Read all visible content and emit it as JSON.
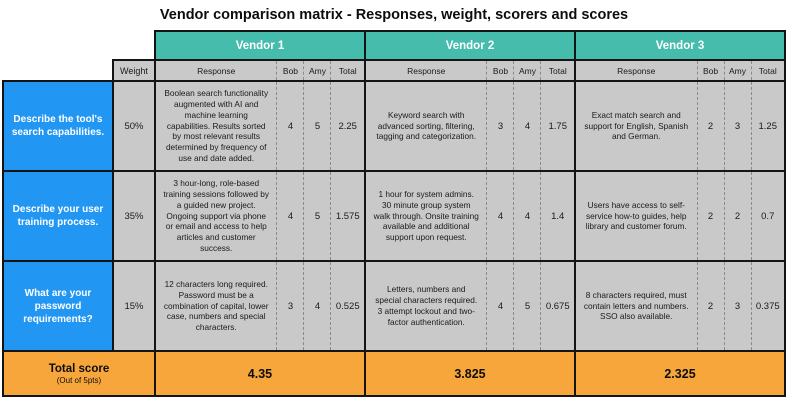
{
  "title": "Vendor comparison matrix - Responses, weight, scorers and scores",
  "colors": {
    "blue": "#2196F3",
    "teal": "#45BCAC",
    "gray": "#C9C9C9",
    "orange": "#F7A63C",
    "border": "#141414"
  },
  "chart_data": {
    "type": "table",
    "title": "Vendor comparison matrix - Responses, weight, scorers and scores",
    "vendors": [
      "Vendor 1",
      "Vendor 2",
      "Vendor 3"
    ],
    "headers": {
      "weight": "Weight",
      "response": "Response",
      "scorer1": "Bob",
      "scorer2": "Amy",
      "total": "Total"
    },
    "rows": [
      {
        "question": "Describe the tool's search capabilities.",
        "weight": "50%",
        "cells": [
          {
            "response": "Boolean search functionality augmented with AI and machine learning capabilities. Results sorted by most relevant results determined by frequency of use and date added.",
            "bob": "4",
            "amy": "5",
            "total": "2.25"
          },
          {
            "response": "Keyword search with advanced sorting, filtering, tagging and categorization.",
            "bob": "3",
            "amy": "4",
            "total": "1.75"
          },
          {
            "response": "Exact match search and support for English, Spanish and German.",
            "bob": "2",
            "amy": "3",
            "total": "1.25"
          }
        ]
      },
      {
        "question": "Describe your user training process.",
        "weight": "35%",
        "cells": [
          {
            "response": "3 hour-long, role-based training sessions followed by a guided new project. Ongoing support via phone or email and access to help articles and customer success.",
            "bob": "4",
            "amy": "5",
            "total": "1.575"
          },
          {
            "response": "1 hour for system admins. 30 minute group system walk through. Onsite training available and additional support upon request.",
            "bob": "4",
            "amy": "4",
            "total": "1.4"
          },
          {
            "response": "Users have access to self-service how-to guides, help library and customer forum.",
            "bob": "2",
            "amy": "2",
            "total": "0.7"
          }
        ]
      },
      {
        "question": "What are your password requirements?",
        "weight": "15%",
        "cells": [
          {
            "response": "12 characters long required. Password must be a combination of capital, lower case, numbers and special characters.",
            "bob": "3",
            "amy": "4",
            "total": "0.525"
          },
          {
            "response": "Letters, numbers and special characters required. 3 attempt lockout and two-factor authentication.",
            "bob": "4",
            "amy": "5",
            "total": "0.675"
          },
          {
            "response": "8 characters required, must contain letters and numbers. SSO also available.",
            "bob": "2",
            "amy": "3",
            "total": "0.375"
          }
        ]
      }
    ],
    "total_row": {
      "label": "Total score",
      "sublabel": "(Out of 5pts)",
      "totals": [
        "4.35",
        "3.825",
        "2.325"
      ]
    }
  }
}
